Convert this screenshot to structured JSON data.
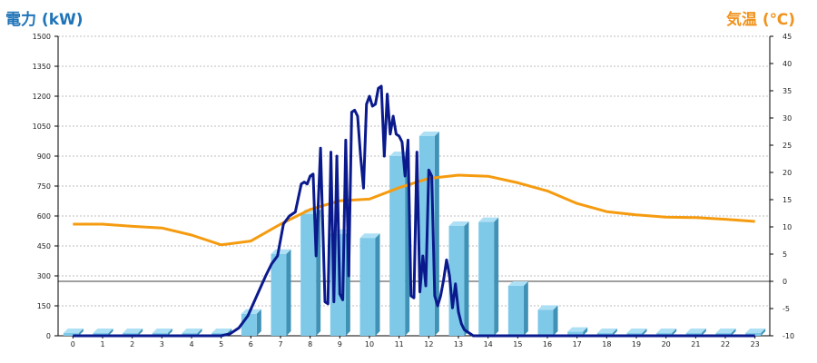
{
  "chart_data": {
    "type": "bar",
    "left_axis_label": "電力 (kW)",
    "right_axis_label": "気温 (℃)",
    "categories": [
      "0",
      "1",
      "2",
      "3",
      "4",
      "5",
      "6",
      "7",
      "8",
      "9",
      "10",
      "11",
      "12",
      "13",
      "14",
      "15",
      "16",
      "17",
      "18",
      "19",
      "20",
      "21",
      "22",
      "23"
    ],
    "y_left": {
      "min": 0,
      "max": 1500,
      "ticks": [
        0,
        150,
        300,
        450,
        600,
        750,
        900,
        1050,
        1200,
        1350,
        1500
      ]
    },
    "y_right": {
      "min": -10,
      "max": 45,
      "ticks": [
        -10,
        -5,
        0,
        5,
        10,
        15,
        20,
        25,
        30,
        35,
        40,
        45
      ]
    },
    "grid": "horizontal dotted",
    "colors": {
      "bars": "#7ec8e8",
      "bar_side": "#3f92b6",
      "power_line": "#0a1a8c",
      "temperature_line": "#f59b0f",
      "left_axis_title": "#1f74b8",
      "right_axis_title": "#f0931e"
    },
    "series": [
      {
        "type": "bar",
        "axis": "left",
        "values": [
          0,
          0,
          0,
          0,
          0,
          0,
          110,
          410,
          610,
          510,
          490,
          900,
          1000,
          550,
          570,
          250,
          130,
          20,
          0,
          0,
          0,
          0,
          0,
          0
        ]
      },
      {
        "type": "line",
        "axis": "left",
        "x": [
          0,
          1,
          2,
          3,
          4,
          5,
          5.3,
          5.6,
          5.9,
          6.2,
          6.5,
          6.7,
          6.9,
          7.1,
          7.3,
          7.5,
          7.7,
          7.8,
          7.9,
          8.0,
          8.1,
          8.2,
          8.35,
          8.5,
          8.6,
          8.7,
          8.8,
          8.9,
          9.0,
          9.1,
          9.2,
          9.3,
          9.4,
          9.5,
          9.6,
          9.7,
          9.8,
          9.9,
          10.0,
          10.1,
          10.2,
          10.3,
          10.4,
          10.5,
          10.6,
          10.7,
          10.8,
          10.9,
          11.0,
          11.1,
          11.2,
          11.3,
          11.4,
          11.5,
          11.6,
          11.7,
          11.8,
          11.9,
          12.0,
          12.1,
          12.2,
          12.3,
          12.4,
          12.5,
          12.6,
          12.7,
          12.8,
          12.9,
          13.0,
          13.1,
          13.2,
          13.3,
          13.4,
          13.5,
          13.6,
          13.7,
          13.8,
          13.9,
          14.0,
          14.1,
          14.2,
          14.3,
          14.4,
          14.5,
          14.6,
          14.7,
          14.8,
          14.9,
          15.0,
          15.1,
          15.2,
          15.3,
          15.4,
          15.5,
          15.6,
          15.7,
          15.8,
          15.9,
          16.0,
          16.1,
          16.2,
          16.4,
          16.7,
          17.0,
          17.5,
          18,
          19,
          20,
          21,
          22,
          23
        ],
        "values": [
          0,
          0,
          0,
          0,
          0,
          0,
          10,
          40,
          100,
          200,
          300,
          360,
          400,
          560,
          600,
          620,
          760,
          770,
          760,
          800,
          810,
          400,
          940,
          170,
          160,
          920,
          170,
          900,
          210,
          180,
          980,
          300,
          1120,
          1130,
          1100,
          900,
          740,
          1160,
          1200,
          1150,
          1160,
          1240,
          1250,
          900,
          1210,
          1010,
          1100,
          1010,
          1000,
          970,
          800,
          980,
          200,
          190,
          920,
          220,
          400,
          250,
          830,
          800,
          200,
          150,
          200,
          280,
          380,
          300,
          140,
          260,
          120,
          60,
          30,
          20,
          10,
          0,
          0,
          0,
          0,
          0,
          0,
          0,
          0,
          0,
          0,
          0,
          0,
          0,
          0,
          0,
          0,
          0,
          0,
          0,
          0,
          0,
          0,
          0,
          0,
          0,
          0,
          0,
          0,
          0,
          0,
          0,
          0,
          0,
          0,
          0,
          0,
          0,
          0
        ]
      },
      {
        "type": "line",
        "axis": "right",
        "x": [
          0,
          1,
          2,
          3,
          4,
          5,
          6,
          7,
          8,
          9,
          10,
          11,
          12,
          13,
          14,
          15,
          16,
          17,
          18,
          19,
          20,
          21,
          22,
          23
        ],
        "values": [
          10.5,
          10.5,
          10.1,
          9.8,
          8.5,
          6.7,
          7.4,
          10.5,
          13.2,
          14.8,
          15.1,
          17.2,
          18.9,
          19.5,
          19.3,
          18.1,
          16.6,
          14.3,
          12.8,
          12.2,
          11.8,
          11.7,
          11.4,
          11.0
        ]
      }
    ]
  }
}
